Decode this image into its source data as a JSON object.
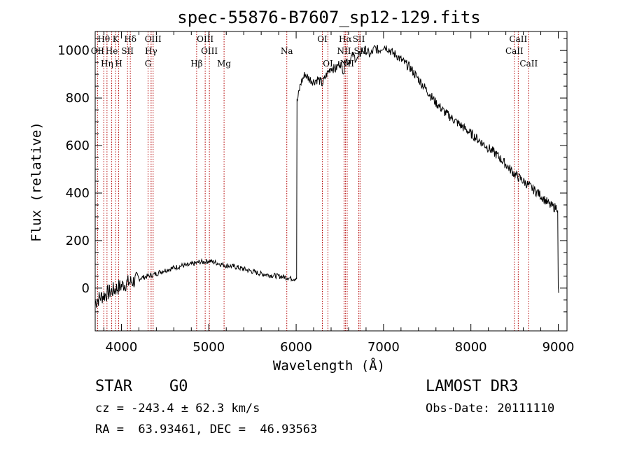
{
  "chart_data": {
    "type": "line",
    "title": "spec-55876-B7607_sp12-129.fits",
    "xlabel": "Wavelength (Å)",
    "ylabel": "Flux (relative)",
    "xlim": [
      3700,
      9100
    ],
    "ylim": [
      -180,
      1080
    ],
    "xticks": [
      4000,
      5000,
      6000,
      7000,
      8000,
      9000
    ],
    "yticks": [
      0,
      200,
      400,
      600,
      800,
      1000
    ],
    "series": [
      {
        "name": "spectrum",
        "x": [
          3700,
          3750,
          3800,
          3850,
          3900,
          3950,
          4000,
          4050,
          4100,
          4150,
          4200,
          4250,
          4300,
          4350,
          4400,
          4450,
          4500,
          4550,
          4600,
          4650,
          4700,
          4750,
          4800,
          4850,
          4900,
          4950,
          5000,
          5050,
          5100,
          5150,
          5200,
          5300,
          5400,
          5500,
          5600,
          5700,
          5800,
          5900,
          5950,
          5980,
          6000,
          6010,
          6050,
          6100,
          6150,
          6200,
          6250,
          6300,
          6350,
          6400,
          6450,
          6500,
          6550,
          6560,
          6600,
          6650,
          6700,
          6750,
          6800,
          6850,
          6900,
          6950,
          7000,
          7050,
          7100,
          7150,
          7200,
          7300,
          7400,
          7500,
          7600,
          7700,
          7800,
          7900,
          8000,
          8100,
          8200,
          8300,
          8400,
          8500,
          8600,
          8700,
          8800,
          8850,
          8900,
          8950,
          9000,
          9005
        ],
        "y": [
          -60,
          -40,
          -30,
          -20,
          -10,
          0,
          10,
          20,
          25,
          30,
          40,
          45,
          50,
          55,
          60,
          70,
          75,
          80,
          85,
          90,
          95,
          95,
          100,
          105,
          110,
          110,
          115,
          110,
          105,
          100,
          95,
          90,
          80,
          70,
          60,
          55,
          50,
          45,
          40,
          40,
          45,
          780,
          860,
          900,
          880,
          870,
          880,
          860,
          900,
          930,
          920,
          950,
          910,
          970,
          950,
          980,
          960,
          1000,
          1000,
          980,
          1010,
          1000,
          1020,
          1010,
          990,
          980,
          960,
          930,
          880,
          830,
          780,
          740,
          710,
          680,
          650,
          620,
          590,
          560,
          520,
          480,
          450,
          420,
          390,
          370,
          350,
          340,
          -10,
          -20
        ]
      }
    ],
    "emission_lines": [
      {
        "label": "Hθ",
        "x": 3798,
        "row": 0
      },
      {
        "label": "K",
        "x": 3934,
        "row": 0
      },
      {
        "label": "Hδ",
        "x": 4102,
        "row": 0
      },
      {
        "label": "OIII",
        "x": 4363,
        "row": 0
      },
      {
        "label": "OIII",
        "x": 4959,
        "row": 0
      },
      {
        "label": "OI",
        "x": 6300,
        "row": 0
      },
      {
        "label": "Hα",
        "x": 6563,
        "row": 0
      },
      {
        "label": "SII",
        "x": 6717,
        "row": 0
      },
      {
        "label": "CaII",
        "x": 8542,
        "row": 0
      },
      {
        "label": "OII",
        "x": 3727,
        "row": 1
      },
      {
        "label": "He",
        "x": 3889,
        "row": 1
      },
      {
        "label": "SII",
        "x": 4070,
        "row": 1
      },
      {
        "label": "Hγ",
        "x": 4340,
        "row": 1
      },
      {
        "label": "OIII",
        "x": 5007,
        "row": 1
      },
      {
        "label": "Na",
        "x": 5893,
        "row": 1
      },
      {
        "label": "NII",
        "x": 6548,
        "row": 1
      },
      {
        "label": "SII",
        "x": 6731,
        "row": 1
      },
      {
        "label": "CaII",
        "x": 8498,
        "row": 1
      },
      {
        "label": "Hη",
        "x": 3835,
        "row": 2
      },
      {
        "label": "H",
        "x": 3969,
        "row": 2
      },
      {
        "label": "G",
        "x": 4305,
        "row": 2
      },
      {
        "label": "Hβ",
        "x": 4861,
        "row": 2
      },
      {
        "label": "Mg",
        "x": 5175,
        "row": 2
      },
      {
        "label": "OI",
        "x": 6364,
        "row": 2
      },
      {
        "label": "NII",
        "x": 6584,
        "row": 2
      },
      {
        "label": "CaII",
        "x": 8662,
        "row": 2
      }
    ],
    "line_color": "#b30000"
  },
  "info": {
    "class_label": "STAR",
    "subclass": "G0",
    "survey": "LAMOST DR3",
    "cz": "cz = -243.4 ± 62.3 km/s",
    "obs_date": "Obs-Date: 20111110",
    "coords": "RA =  63.93461, DEC =  46.93563"
  }
}
